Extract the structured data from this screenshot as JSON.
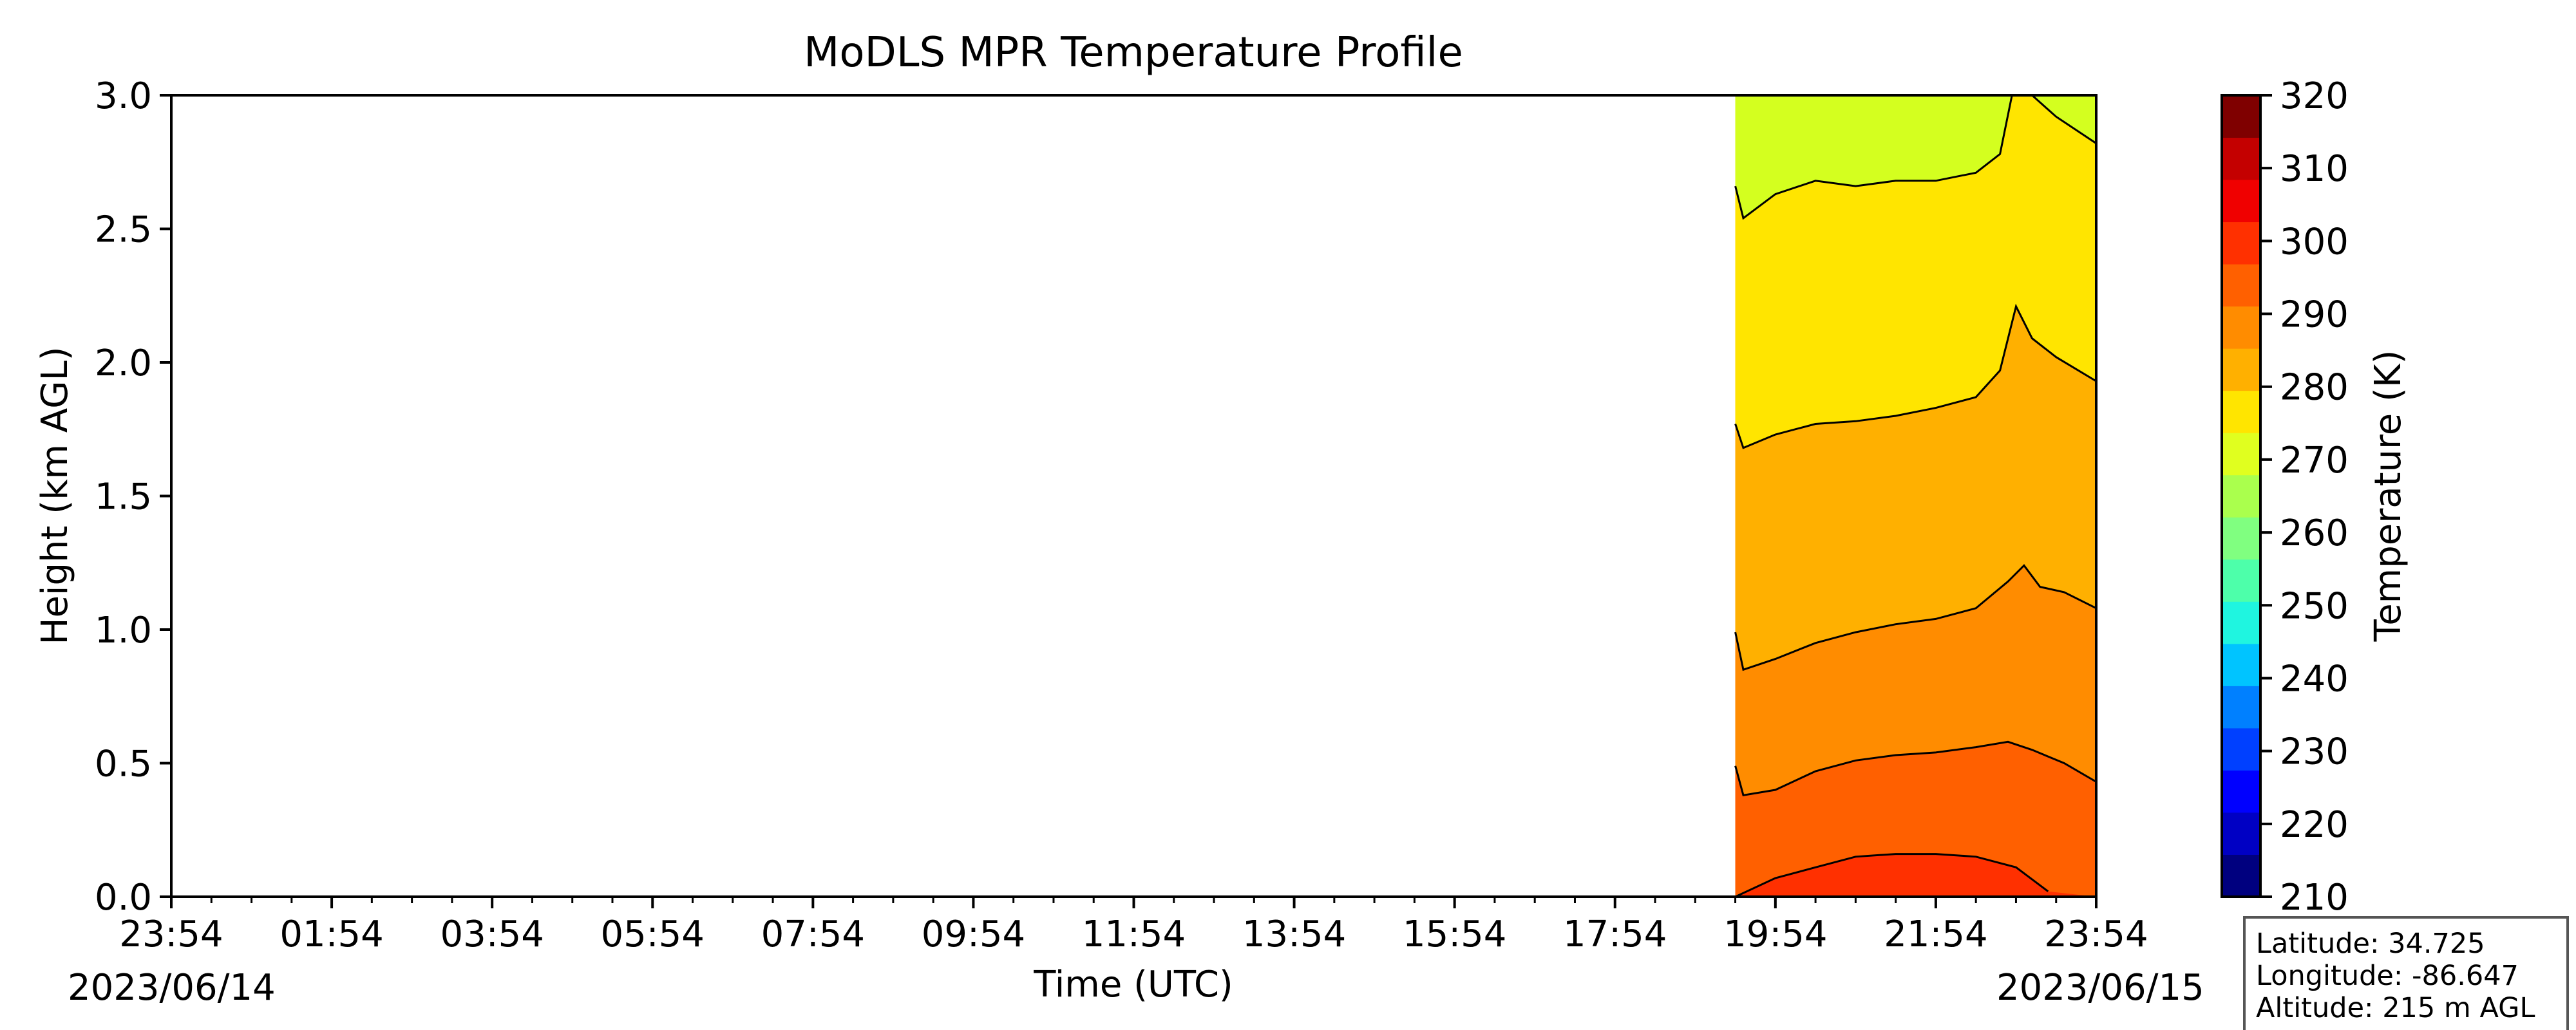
{
  "chart_data": {
    "type": "heatmap",
    "subtype": "filled-contour time-height profile",
    "title": "MoDLS MPR Temperature Profile",
    "xlabel": "Time (UTC)",
    "ylabel": "Height (km AGL)",
    "x_tick_labels": [
      "23:54",
      "01:54",
      "03:54",
      "05:54",
      "07:54",
      "09:54",
      "11:54",
      "13:54",
      "15:54",
      "17:54",
      "19:54",
      "21:54",
      "23:54"
    ],
    "x_tick_hours": [
      0,
      2,
      4,
      6,
      8,
      10,
      12,
      14,
      16,
      18,
      20,
      22,
      24
    ],
    "x_minor_ticks_per_interval": 4,
    "xlim_hours": [
      0,
      24
    ],
    "start_date": "2023/06/14",
    "end_date": "2023/06/15",
    "y_ticks": [
      0.0,
      0.5,
      1.0,
      1.5,
      2.0,
      2.5,
      3.0
    ],
    "y_tick_labels": [
      "0.0",
      "0.5",
      "1.0",
      "1.5",
      "2.0",
      "2.5",
      "3.0"
    ],
    "ylim": [
      0,
      3.0
    ],
    "data_start_hour": 19.5,
    "colorbar": {
      "label": "Temperature (K)",
      "range": [
        210,
        320
      ],
      "step": 5,
      "tick_values": [
        210,
        220,
        230,
        240,
        250,
        260,
        270,
        280,
        290,
        300,
        310,
        320
      ],
      "tick_labels": [
        "210",
        "220",
        "230",
        "240",
        "250",
        "260",
        "270",
        "280",
        "290",
        "300",
        "310",
        "320"
      ],
      "colors": [
        "#00007f",
        "#0000c4",
        "#0000ff",
        "#0040ff",
        "#0080ff",
        "#00c4ff",
        "#1ff5e0",
        "#4dffaa",
        "#80ff80",
        "#aaff4d",
        "#e0ff1f",
        "#ffe500",
        "#ffb000",
        "#ff8c00",
        "#ff6000",
        "#ff3000",
        "#f00000",
        "#c40000",
        "#7f0000"
      ]
    },
    "contour_levels": [
      {
        "level": 300,
        "band_below_color": "#ff3000",
        "band_above_color": "#ff6000",
        "points": [
          [
            19.5,
            0.0
          ],
          [
            20.0,
            0.07
          ],
          [
            20.5,
            0.11
          ],
          [
            21.0,
            0.15
          ],
          [
            21.5,
            0.16
          ],
          [
            22.0,
            0.16
          ],
          [
            22.5,
            0.15
          ],
          [
            23.0,
            0.11
          ],
          [
            23.4,
            0.02
          ]
        ]
      },
      {
        "level": 295,
        "band_above_color": "#ff8c00",
        "points": [
          [
            19.5,
            0.49
          ],
          [
            19.6,
            0.38
          ],
          [
            20.0,
            0.4
          ],
          [
            20.5,
            0.47
          ],
          [
            21.0,
            0.51
          ],
          [
            21.5,
            0.53
          ],
          [
            22.0,
            0.54
          ],
          [
            22.5,
            0.56
          ],
          [
            22.9,
            0.58
          ],
          [
            23.2,
            0.55
          ],
          [
            23.6,
            0.5
          ],
          [
            24.0,
            0.43
          ]
        ]
      },
      {
        "level": 290,
        "band_above_color": "#ffb000",
        "points": [
          [
            19.5,
            0.99
          ],
          [
            19.6,
            0.85
          ],
          [
            20.0,
            0.89
          ],
          [
            20.5,
            0.95
          ],
          [
            21.0,
            0.99
          ],
          [
            21.5,
            1.02
          ],
          [
            22.0,
            1.04
          ],
          [
            22.5,
            1.08
          ],
          [
            22.9,
            1.18
          ],
          [
            23.1,
            1.24
          ],
          [
            23.3,
            1.16
          ],
          [
            23.6,
            1.14
          ],
          [
            24.0,
            1.08
          ]
        ]
      },
      {
        "level": 285,
        "band_above_color": "#ffe500",
        "points": [
          [
            19.5,
            1.77
          ],
          [
            19.6,
            1.68
          ],
          [
            20.0,
            1.73
          ],
          [
            20.5,
            1.77
          ],
          [
            21.0,
            1.78
          ],
          [
            21.5,
            1.8
          ],
          [
            22.0,
            1.83
          ],
          [
            22.5,
            1.87
          ],
          [
            22.8,
            1.97
          ],
          [
            23.0,
            2.21
          ],
          [
            23.2,
            2.09
          ],
          [
            23.5,
            2.02
          ],
          [
            24.0,
            1.93
          ]
        ]
      },
      {
        "level": 280,
        "band_above_color": "#d4ff1f",
        "points": [
          [
            19.5,
            2.66
          ],
          [
            19.6,
            2.54
          ],
          [
            20.0,
            2.63
          ],
          [
            20.5,
            2.68
          ],
          [
            21.0,
            2.66
          ],
          [
            21.5,
            2.68
          ],
          [
            22.0,
            2.68
          ],
          [
            22.5,
            2.71
          ],
          [
            22.8,
            2.78
          ],
          [
            22.95,
            3.0
          ],
          [
            23.2,
            3.0
          ],
          [
            23.5,
            2.92
          ],
          [
            24.0,
            2.82
          ]
        ]
      }
    ],
    "info_box": {
      "latitude": "Latitude: 34.725",
      "longitude": "Longitude: -86.647",
      "altitude": "Altitude: 215 m AGL"
    }
  }
}
